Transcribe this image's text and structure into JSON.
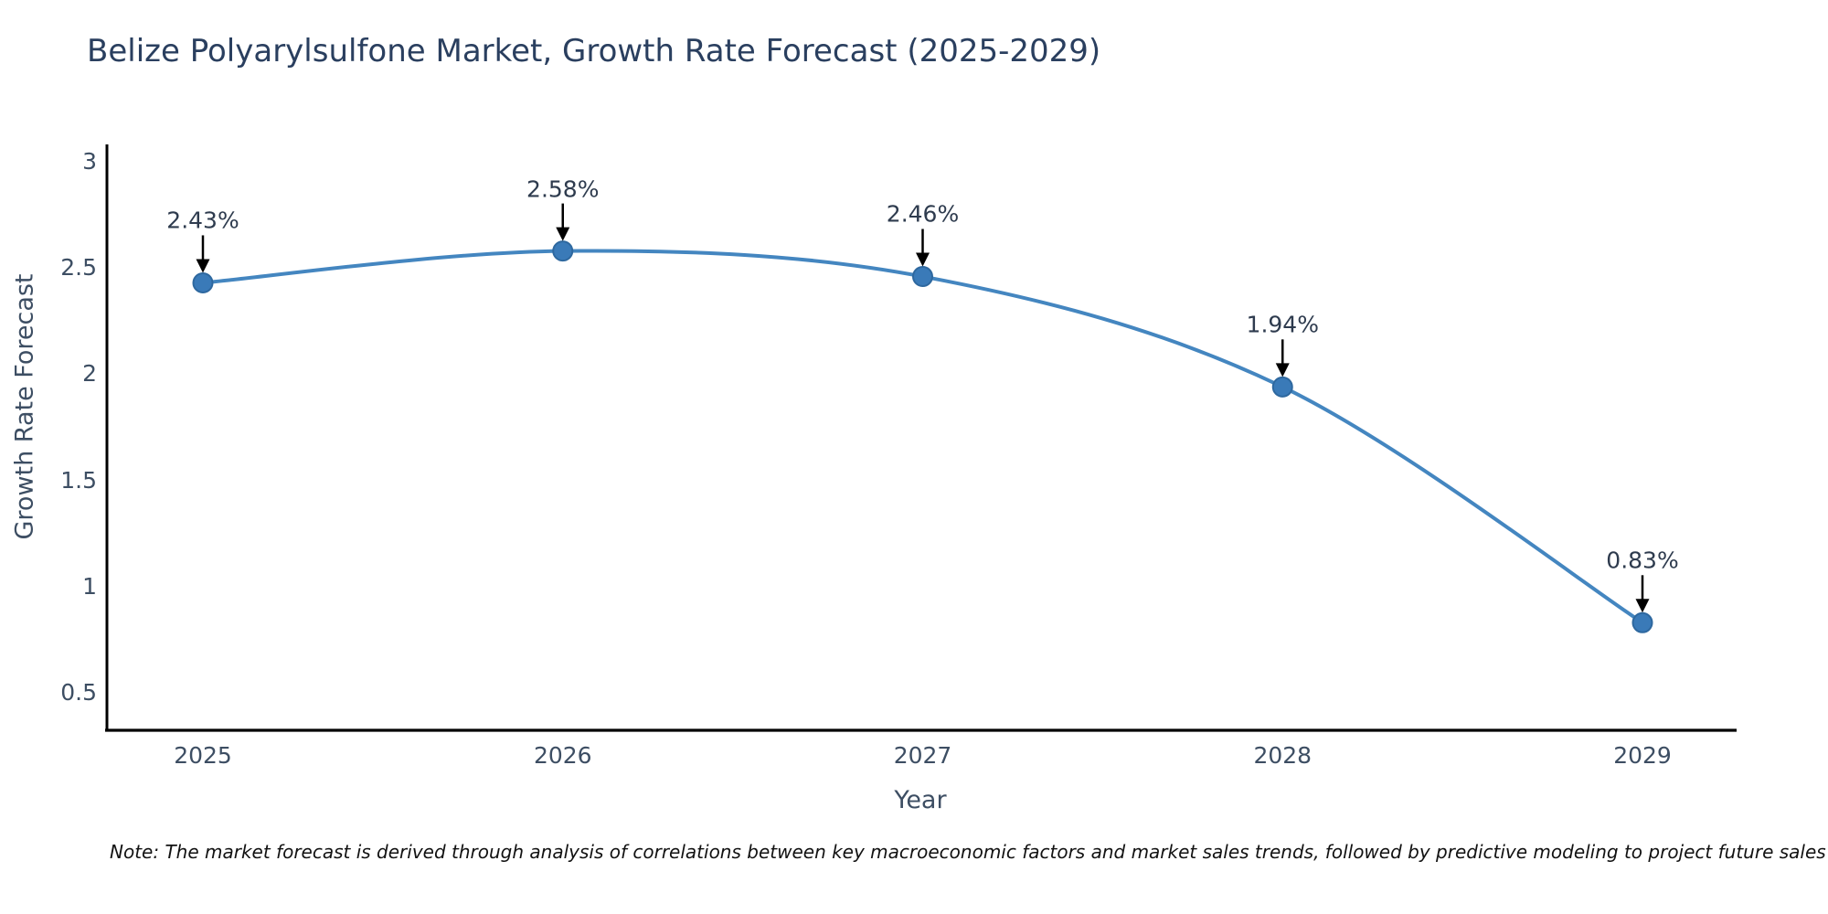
{
  "title": "Belize Polyarylsulfone Market, Growth Rate Forecast (2025-2029)",
  "note": "Note: The market forecast is derived through analysis of correlations between key macroeconomic factors and market sales trends, followed by predictive modeling to project future sales",
  "chart_data": {
    "type": "line",
    "title": "Belize Polyarylsulfone Market, Growth Rate Forecast (2025-2029)",
    "x": [
      2025,
      2026,
      2027,
      2028,
      2029
    ],
    "series": [
      {
        "name": "Growth Rate Forecast",
        "values": [
          2.43,
          2.58,
          2.46,
          1.94,
          0.83
        ]
      }
    ],
    "point_labels": [
      "2.43%",
      "2.58%",
      "2.46%",
      "1.94%",
      "0.83%"
    ],
    "xlabel": "Year",
    "ylabel": "Growth Rate Forecast",
    "xticklabels": [
      "2025",
      "2026",
      "2027",
      "2028",
      "2029"
    ],
    "yticks": [
      0.5,
      1,
      1.5,
      2,
      2.5,
      3
    ],
    "ylim": [
      0.32,
      3.08
    ],
    "xlim": [
      2024.73,
      2029.26
    ],
    "grid": false,
    "legend_position": "none",
    "line_shape": "spline",
    "annotation_style": "value labels with down arrows pointing at markers",
    "colors": {
      "line": "#4486c0",
      "marker_fill": "#3a7ab8",
      "marker_edge": "#2e689f",
      "arrow": "#000000",
      "axis_spine": "#000000",
      "title_text": "#2a3f5f",
      "tick_text": "#3d4e63",
      "annotation_text": "#2e3b4e",
      "background": "#ffffff"
    }
  }
}
